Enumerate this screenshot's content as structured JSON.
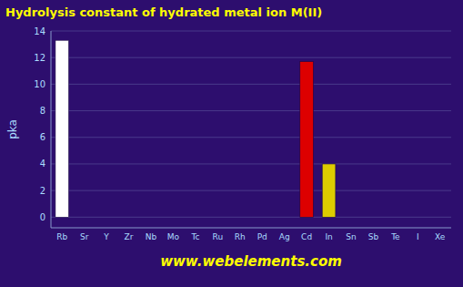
{
  "chart_data": {
    "type": "bar",
    "title": "Hydrolysis constant of hydrated metal ion M(II)",
    "y_label": "pka",
    "annotations": [
      "www.webelements.com"
    ],
    "categories": [
      "Rb",
      "Sr",
      "Y",
      "Zr",
      "Nb",
      "Mo",
      "Tc",
      "Ru",
      "Rh",
      "Pd",
      "Ag",
      "Cd",
      "In",
      "Sn",
      "Sb",
      "Te",
      "I",
      "Xe"
    ],
    "values": [
      13.3,
      0.0,
      0.0,
      0.0,
      0.0,
      0.0,
      0.0,
      0.0,
      0.0,
      0.0,
      0.0,
      11.7,
      4.0,
      0.0,
      0.0,
      0.0,
      0.0,
      0.0
    ],
    "colors": [
      "#ffffff",
      null,
      null,
      null,
      null,
      null,
      null,
      null,
      null,
      null,
      null,
      "#dd0000",
      "#ddcc00",
      null,
      null,
      null,
      null,
      null
    ],
    "ylim": [
      -0.8,
      14
    ],
    "yticks": [
      0,
      2,
      4,
      6,
      8,
      10,
      12,
      14
    ],
    "grid": true
  }
}
